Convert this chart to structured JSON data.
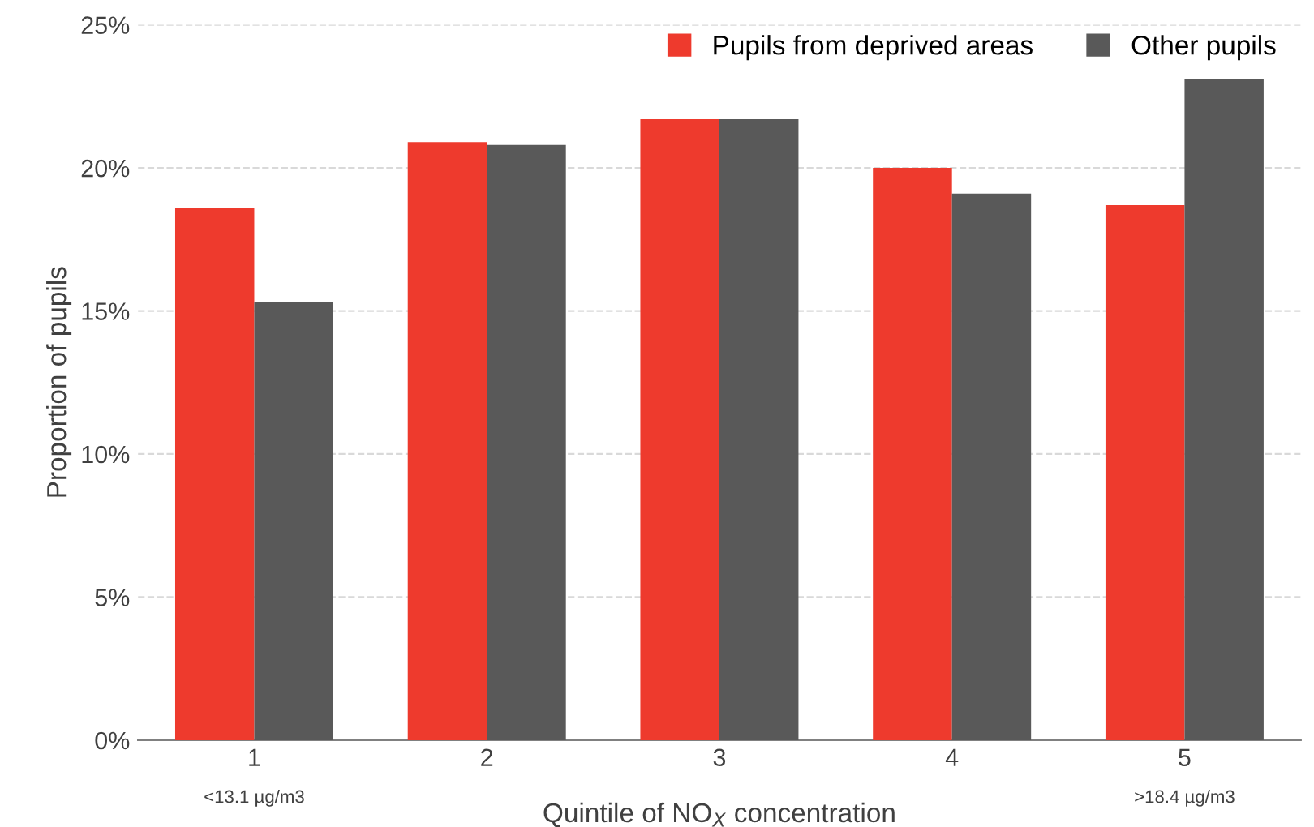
{
  "chart_data": {
    "type": "bar",
    "ylabel": "Proportion of pupils",
    "xlabel": "Quintile of NO$_{X}$ concentration",
    "categories": [
      "1\n<13.1 µg/m3",
      "2",
      "3",
      "4",
      "5\n>18.4 µg/m3"
    ],
    "series": [
      {
        "name": "Pupils from deprived areas",
        "color": "#ee3a2d",
        "values": [
          18.6,
          20.9,
          21.7,
          20.0,
          18.7
        ]
      },
      {
        "name": "Other pupils",
        "color": "#595959",
        "values": [
          15.3,
          20.8,
          21.7,
          19.1,
          23.1
        ]
      }
    ],
    "ylim": [
      0,
      25
    ],
    "yticks": [
      {
        "value": 0,
        "label": "0%"
      },
      {
        "value": 5,
        "label": "5%"
      },
      {
        "value": 10,
        "label": "10%"
      },
      {
        "value": 15,
        "label": "15%"
      },
      {
        "value": 20,
        "label": "20%"
      },
      {
        "value": 25,
        "label": "25%"
      }
    ],
    "grid": "y",
    "legend": "top right"
  }
}
